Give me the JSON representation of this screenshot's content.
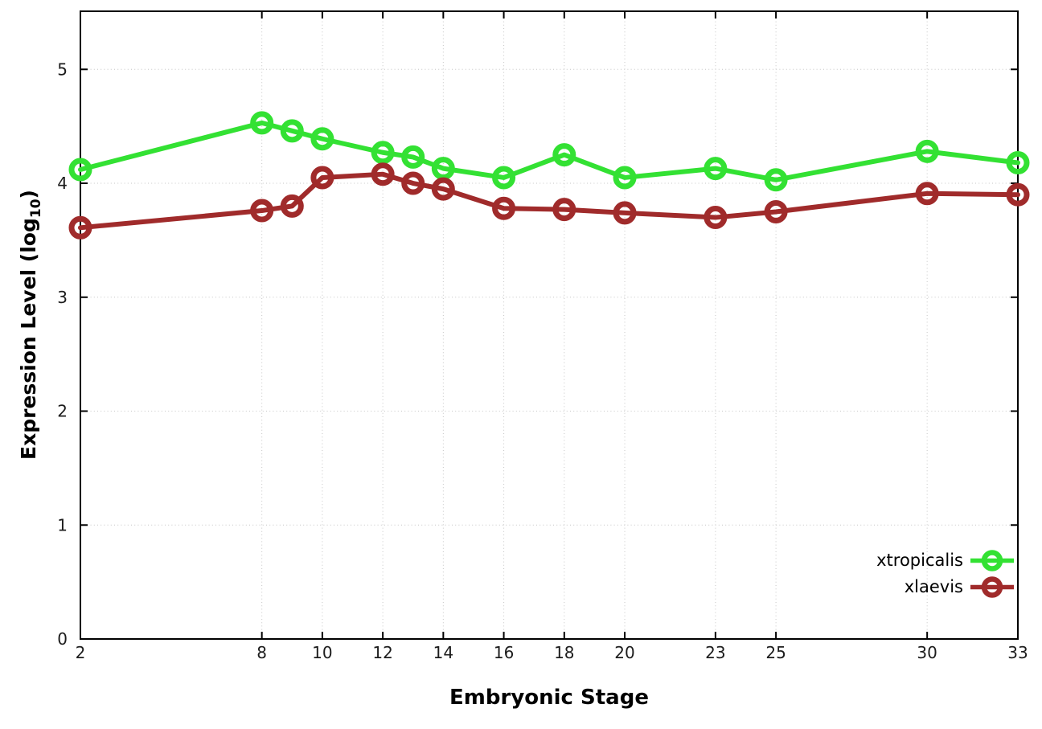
{
  "figure": {
    "background": "#ffffff",
    "border_color": "#000000",
    "grid_color": "#c6c6c6",
    "tick_label_color": "#1c1c1c",
    "ylabel_parts": {
      "pre": "Expression Level (log",
      "sub": "10",
      "post": ")"
    }
  },
  "chart_data": {
    "type": "line",
    "title": "",
    "xlabel": "Embryonic Stage",
    "ylabel": "Expression Level (log10)",
    "x": [
      2,
      8,
      9,
      10,
      12,
      13,
      14,
      16,
      18,
      20,
      23,
      25,
      30,
      33
    ],
    "xticks": [
      2,
      8,
      10,
      12,
      14,
      16,
      18,
      20,
      23,
      25,
      30,
      33
    ],
    "yticks": [
      0,
      1,
      2,
      3,
      4,
      5
    ],
    "xlim": [
      2,
      33
    ],
    "ylim": [
      0,
      5.51
    ],
    "grid": true,
    "legend_position": "inside bottom-right",
    "series": [
      {
        "name": "xtropicalis",
        "color": "#33e133",
        "marker": "open-circle",
        "values": [
          4.12,
          4.53,
          4.46,
          4.39,
          4.27,
          4.23,
          4.13,
          4.05,
          4.25,
          4.05,
          4.13,
          4.03,
          4.28,
          4.18
        ]
      },
      {
        "name": "xlaevis",
        "color": "#a02b2b",
        "marker": "open-circle",
        "values": [
          3.61,
          3.76,
          3.8,
          4.05,
          4.08,
          4.0,
          3.95,
          3.78,
          3.77,
          3.74,
          3.7,
          3.75,
          3.91,
          3.9
        ]
      }
    ]
  }
}
